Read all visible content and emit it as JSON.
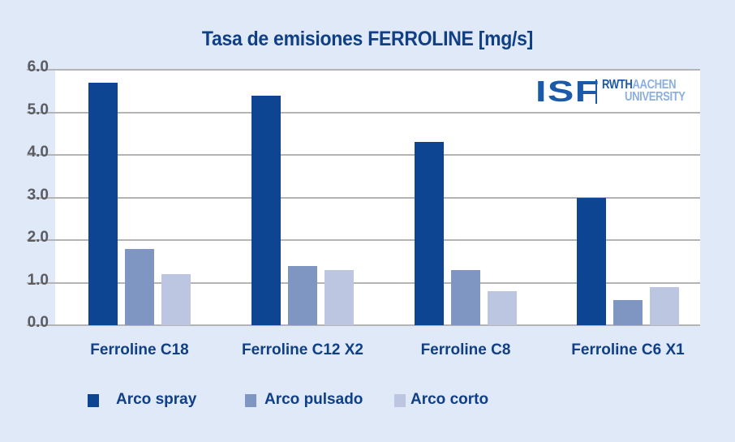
{
  "chart_data": {
    "type": "bar",
    "title": "Tasa de emisiones FERROLINE [mg/s]",
    "xlabel": "",
    "ylabel": "",
    "categories": [
      "Ferroline C18",
      "Ferroline C12 X2",
      "Ferroline C8",
      "Ferroline C6 X1"
    ],
    "series": [
      {
        "name": "Arco spray",
        "color": "#0d4592",
        "values": [
          5.7,
          5.4,
          4.3,
          3.0
        ]
      },
      {
        "name": "Arco pulsado",
        "color": "#7f95c2",
        "values": [
          1.8,
          1.4,
          1.3,
          0.6
        ]
      },
      {
        "name": "Arco corto",
        "color": "#bdc6e1",
        "values": [
          1.2,
          1.3,
          0.8,
          0.9
        ]
      }
    ],
    "ylim": [
      0,
      6
    ],
    "yticks": [
      "0.0",
      "1.0",
      "2.0",
      "3.0",
      "4.0",
      "5.0",
      "6.0"
    ],
    "grid": true,
    "legend_position": "bottom"
  },
  "logo": {
    "isf": "ISF",
    "rwth": "RWTH",
    "aachen": "AACHEN",
    "university": "UNIVERSITY"
  },
  "colors": {
    "background": "#dfe9f7",
    "title": "#103f85",
    "plot_background": "#ffffff",
    "grid": "#b4b4b4",
    "tick_text": "#5a5b63"
  }
}
